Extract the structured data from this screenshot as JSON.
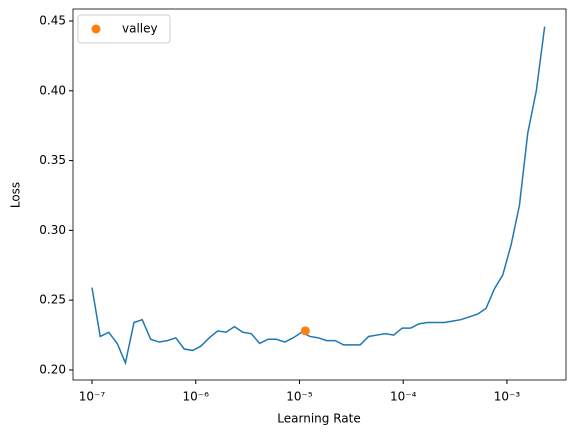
{
  "chart_data": {
    "type": "line",
    "xlabel": "Learning Rate",
    "ylabel": "Loss",
    "xscale": "log",
    "xlim": [
      6.56e-08,
      0.00371
    ],
    "ylim": [
      0.1928,
      0.4586
    ],
    "xticks": [
      {
        "value": 1e-07,
        "label": "10⁻⁷"
      },
      {
        "value": 1e-06,
        "label": "10⁻⁶"
      },
      {
        "value": 1e-05,
        "label": "10⁻⁵"
      },
      {
        "value": 0.0001,
        "label": "10⁻⁴"
      },
      {
        "value": 0.001,
        "label": "10⁻³"
      }
    ],
    "yticks": [
      {
        "value": 0.2,
        "label": "0.20"
      },
      0.25,
      {
        "value": 0.3,
        "label": "0.30"
      },
      0.35,
      {
        "value": 0.4,
        "label": "0.40"
      },
      0.45
    ],
    "grid": false,
    "legend": "upper left",
    "series": [
      {
        "type": "line",
        "color": "#1f77b4",
        "x": [
          1e-07,
          1.2e-07,
          1.45e-07,
          1.75e-07,
          2.1e-07,
          2.54e-07,
          3.05e-07,
          3.68e-07,
          4.43e-07,
          5.34e-07,
          6.43e-07,
          7.74e-07,
          9.33e-07,
          1.12e-06,
          1.35e-06,
          1.63e-06,
          1.96e-06,
          2.36e-06,
          2.85e-06,
          3.43e-06,
          4.13e-06,
          4.98e-06,
          6e-06,
          7.22e-06,
          8.7e-06,
          1.05e-05,
          1.26e-05,
          1.52e-05,
          1.83e-05,
          2.21e-05,
          2.66e-05,
          3.2e-05,
          3.85e-05,
          4.64e-05,
          5.59e-05,
          6.73e-05,
          8.11e-05,
          9.77e-05,
          0.000118,
          0.000142,
          0.000171,
          0.000206,
          0.000248,
          0.000298,
          0.000359,
          0.000433,
          0.000521,
          0.000628,
          0.000756,
          0.000911,
          0.0011,
          0.00132,
          0.00159,
          0.00192,
          0.00231
        ],
        "values": [
          0.259,
          0.224,
          0.227,
          0.219,
          0.205,
          0.234,
          0.236,
          0.222,
          0.22,
          0.221,
          0.223,
          0.215,
          0.214,
          0.217,
          0.223,
          0.228,
          0.227,
          0.231,
          0.227,
          0.226,
          0.219,
          0.222,
          0.222,
          0.22,
          0.223,
          0.227,
          0.224,
          0.223,
          0.221,
          0.221,
          0.218,
          0.218,
          0.218,
          0.224,
          0.225,
          0.226,
          0.225,
          0.23,
          0.23,
          0.233,
          0.234,
          0.234,
          0.234,
          0.235,
          0.236,
          0.238,
          0.24,
          0.244,
          0.258,
          0.268,
          0.29,
          0.318,
          0.37,
          0.4,
          0.446
        ]
      },
      {
        "type": "scatter",
        "name": "valley",
        "color": "#ff7f0e",
        "x": [
          1.14e-05
        ],
        "values": [
          0.228
        ]
      }
    ]
  }
}
